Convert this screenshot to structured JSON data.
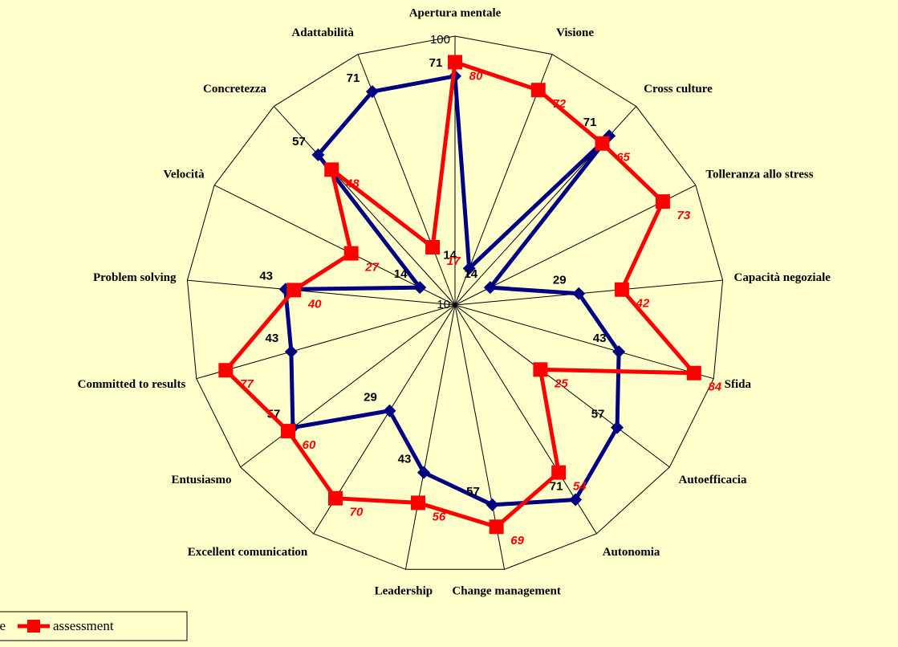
{
  "chart_data": {
    "type": "radar",
    "categories": [
      "Apertura mentale",
      "Visione",
      "Cross culture",
      "Tolleranza allo stress",
      "Capacità negoziale",
      "Sfida",
      "Autoefficacia",
      "Autonomia",
      "Change management",
      "Leadership",
      "Excellent comunication",
      "Entusiasmo",
      "Committed to results",
      "Problem solving",
      "Velocità",
      "Concretezza",
      "Adattabilità"
    ],
    "series": [
      {
        "name": "e",
        "color": "#000080",
        "marker": "diamond",
        "label_color": "#000000",
        "values": [
          71,
          14,
          71,
          14,
          29,
          43,
          57,
          71,
          57,
          43,
          29,
          57,
          43,
          43,
          14,
          57,
          71
        ]
      },
      {
        "name": "assessment",
        "color": "#ff0000",
        "marker": "square",
        "label_color": "#ff0000",
        "values": [
          80,
          72,
          65,
          73,
          42,
          84,
          25,
          54,
          69,
          56,
          70,
          60,
          77,
          40,
          27,
          48,
          17
        ]
      }
    ],
    "ylim": [
      10,
      100
    ],
    "yticks": [
      10,
      100
    ],
    "log_scale": true,
    "legend": "bottom-left"
  }
}
